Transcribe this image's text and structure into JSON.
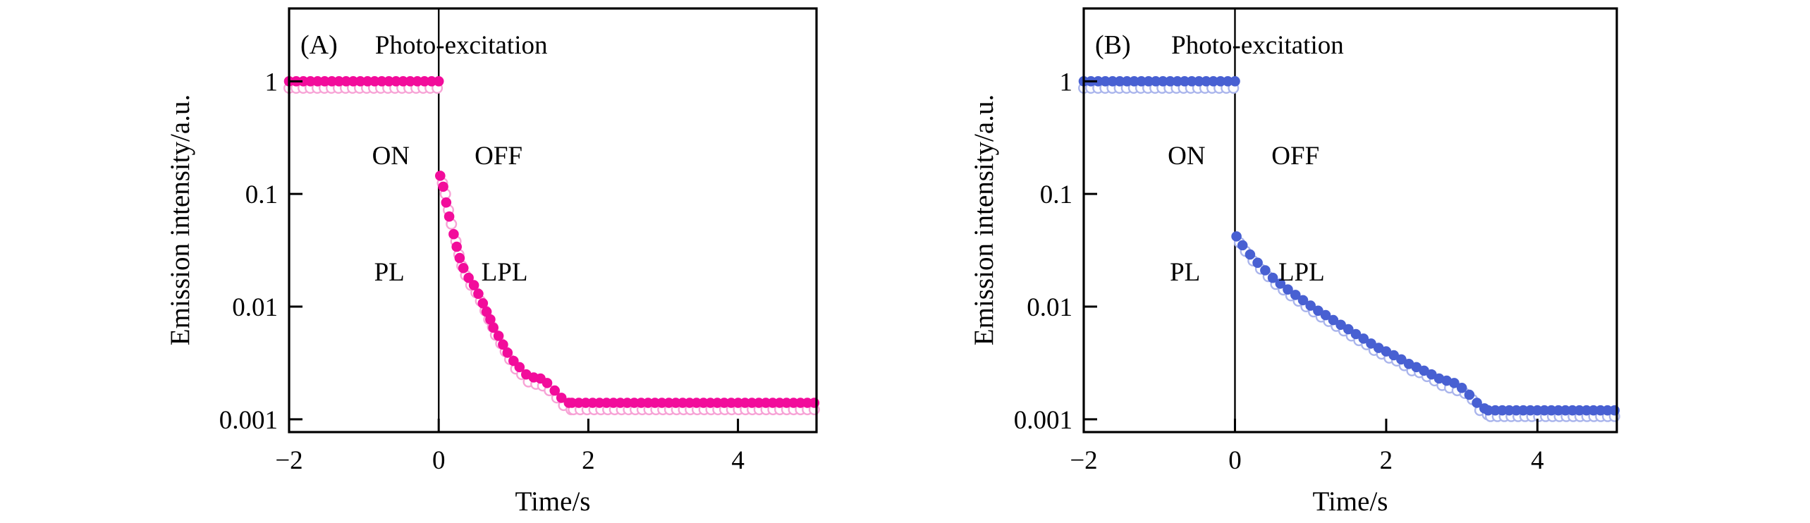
{
  "figure": {
    "background": "#ffffff",
    "border_color": "#000000"
  },
  "chart_data": [
    {
      "type": "scatter",
      "panel_label": "(A)",
      "title": "Photo-excitation",
      "xlabel": "Time/s",
      "ylabel": "Emission intensity/a.u.",
      "xlim": [
        -2,
        5.05
      ],
      "ylim": [
        0.00077,
        4.43
      ],
      "yscale": "log",
      "x_ticks": [
        -2,
        0,
        2,
        4
      ],
      "x_tick_labels": [
        "−2",
        "0",
        "2",
        "4"
      ],
      "y_ticks": [
        1,
        0.1,
        0.01,
        0.001
      ],
      "y_tick_labels": [
        "1",
        "0.1",
        "0.01",
        "0.001"
      ],
      "grid": false,
      "legend": "none",
      "excitation_boundary_x": 0,
      "annotations": {
        "on": "ON",
        "off": "OFF",
        "pl": "PL",
        "lpl": "LPL"
      },
      "series": [
        {
          "name": "open-circle-series",
          "marker": "open",
          "color": "#f7a3d6",
          "segments": [
            {
              "type": "flat",
              "x_start": -2.0,
              "x_end": -0.02,
              "y": 0.87,
              "n": 22
            },
            {
              "type": "points",
              "points": [
                [
                  0.05,
                  0.125
                ],
                [
                  0.09,
                  0.1
                ],
                [
                  0.13,
                  0.072
                ],
                [
                  0.17,
                  0.054
                ],
                [
                  0.23,
                  0.038
                ],
                [
                  0.27,
                  0.029
                ],
                [
                  0.31,
                  0.023
                ],
                [
                  0.36,
                  0.019
                ],
                [
                  0.43,
                  0.0155
                ],
                [
                  0.5,
                  0.0133
                ],
                [
                  0.56,
                  0.0112
                ],
                [
                  0.62,
                  0.0092
                ],
                [
                  0.67,
                  0.0077
                ],
                [
                  0.72,
                  0.0066
                ],
                [
                  0.76,
                  0.0056
                ],
                [
                  0.83,
                  0.0047
                ],
                [
                  0.89,
                  0.004
                ],
                [
                  0.95,
                  0.0034
                ],
                [
                  1.03,
                  0.0028
                ],
                [
                  1.11,
                  0.0025
                ],
                [
                  1.2,
                  0.00215
                ],
                [
                  1.3,
                  0.00205
                ],
                [
                  1.39,
                  0.00198
                ],
                [
                  1.48,
                  0.0018
                ],
                [
                  1.58,
                  0.00155
                ],
                [
                  1.67,
                  0.00133
                ],
                [
                  1.77,
                  0.00122
                ]
              ]
            },
            {
              "type": "flat",
              "x_start": 1.8,
              "x_end": 5.02,
              "y": 0.00122,
              "n": 36
            }
          ]
        },
        {
          "name": "filled-circle-series",
          "marker": "filled",
          "color": "#f20c9b",
          "segments": [
            {
              "type": "flat",
              "x_start": -2.0,
              "x_end": 0.0,
              "y": 1.0,
              "n": 22
            },
            {
              "type": "points",
              "points": [
                [
                  0.02,
                  0.145
                ],
                [
                  0.06,
                  0.116
                ],
                [
                  0.1,
                  0.084
                ],
                [
                  0.14,
                  0.063
                ],
                [
                  0.2,
                  0.044
                ],
                [
                  0.24,
                  0.034
                ],
                [
                  0.28,
                  0.027
                ],
                [
                  0.33,
                  0.022
                ],
                [
                  0.4,
                  0.018
                ],
                [
                  0.47,
                  0.0155
                ],
                [
                  0.53,
                  0.013
                ],
                [
                  0.59,
                  0.0107
                ],
                [
                  0.64,
                  0.009
                ],
                [
                  0.69,
                  0.0077
                ],
                [
                  0.73,
                  0.0065
                ],
                [
                  0.8,
                  0.0055
                ],
                [
                  0.86,
                  0.0046
                ],
                [
                  0.92,
                  0.0039
                ],
                [
                  1.0,
                  0.0033
                ],
                [
                  1.08,
                  0.0029
                ],
                [
                  1.17,
                  0.0025
                ],
                [
                  1.27,
                  0.00235
                ],
                [
                  1.36,
                  0.0023
                ],
                [
                  1.45,
                  0.0021
                ],
                [
                  1.55,
                  0.0018
                ],
                [
                  1.64,
                  0.00155
                ],
                [
                  1.74,
                  0.0014
                ]
              ]
            },
            {
              "type": "flat",
              "x_start": 1.78,
              "x_end": 5.02,
              "y": 0.0014,
              "n": 36
            }
          ]
        }
      ]
    },
    {
      "type": "scatter",
      "panel_label": "(B)",
      "title": "Photo-excitation",
      "xlabel": "Time/s",
      "ylabel": "Emission intensity/a.u.",
      "xlim": [
        -2,
        5.05
      ],
      "ylim": [
        0.00077,
        4.43
      ],
      "yscale": "log",
      "x_ticks": [
        -2,
        0,
        2,
        4
      ],
      "x_tick_labels": [
        "−2",
        "0",
        "2",
        "4"
      ],
      "y_ticks": [
        1,
        0.1,
        0.01,
        0.001
      ],
      "y_tick_labels": [
        "1",
        "0.1",
        "0.01",
        "0.001"
      ],
      "grid": false,
      "legend": "none",
      "excitation_boundary_x": 0,
      "annotations": {
        "on": "ON",
        "off": "OFF",
        "pl": "PL",
        "lpl": "LPL"
      },
      "series": [
        {
          "name": "open-circle-series",
          "marker": "open",
          "color": "#aab5ec",
          "segments": [
            {
              "type": "flat",
              "x_start": -2.0,
              "x_end": -0.02,
              "y": 0.87,
              "n": 22
            },
            {
              "type": "points",
              "points": [
                [
                  0.06,
                  0.037
                ],
                [
                  0.14,
                  0.031
                ],
                [
                  0.24,
                  0.0255
                ],
                [
                  0.34,
                  0.0216
                ],
                [
                  0.44,
                  0.0185
                ],
                [
                  0.54,
                  0.0158
                ],
                [
                  0.64,
                  0.0141
                ],
                [
                  0.74,
                  0.0125
                ],
                [
                  0.84,
                  0.0112
                ],
                [
                  0.94,
                  0.01
                ],
                [
                  1.04,
                  0.009
                ],
                [
                  1.14,
                  0.0081
                ],
                [
                  1.24,
                  0.0074
                ],
                [
                  1.34,
                  0.0067
                ],
                [
                  1.44,
                  0.0061
                ],
                [
                  1.54,
                  0.0055
                ],
                [
                  1.64,
                  0.005
                ],
                [
                  1.74,
                  0.0046
                ],
                [
                  1.84,
                  0.0041
                ],
                [
                  1.94,
                  0.0038
                ],
                [
                  2.04,
                  0.0035
                ],
                [
                  2.14,
                  0.0033
                ],
                [
                  2.24,
                  0.003
                ],
                [
                  2.34,
                  0.0027
                ],
                [
                  2.44,
                  0.0026
                ],
                [
                  2.54,
                  0.0024
                ],
                [
                  2.64,
                  0.0022
                ],
                [
                  2.74,
                  0.002
                ],
                [
                  2.84,
                  0.0019
                ],
                [
                  2.94,
                  0.0018
                ],
                [
                  3.04,
                  0.0017
                ],
                [
                  3.14,
                  0.0015
                ],
                [
                  3.24,
                  0.0012
                ],
                [
                  3.34,
                  0.0011
                ]
              ]
            },
            {
              "type": "flat",
              "x_start": 3.38,
              "x_end": 5.02,
              "y": 0.00106,
              "n": 19
            }
          ]
        },
        {
          "name": "filled-circle-series",
          "marker": "filled",
          "color": "#4860d2",
          "segments": [
            {
              "type": "flat",
              "x_start": -2.0,
              "x_end": 0.0,
              "y": 1.0,
              "n": 22
            },
            {
              "type": "points",
              "points": [
                [
                  0.02,
                  0.042
                ],
                [
                  0.1,
                  0.035
                ],
                [
                  0.2,
                  0.029
                ],
                [
                  0.3,
                  0.0245
                ],
                [
                  0.4,
                  0.021
                ],
                [
                  0.5,
                  0.018
                ],
                [
                  0.6,
                  0.016
                ],
                [
                  0.7,
                  0.0142
                ],
                [
                  0.8,
                  0.0127
                ],
                [
                  0.9,
                  0.0114
                ],
                [
                  1.0,
                  0.0102
                ],
                [
                  1.1,
                  0.0092
                ],
                [
                  1.2,
                  0.0084
                ],
                [
                  1.3,
                  0.0076
                ],
                [
                  1.4,
                  0.0069
                ],
                [
                  1.5,
                  0.0063
                ],
                [
                  1.6,
                  0.0057
                ],
                [
                  1.7,
                  0.0052
                ],
                [
                  1.8,
                  0.0047
                ],
                [
                  1.9,
                  0.0043
                ],
                [
                  2.0,
                  0.004
                ],
                [
                  2.1,
                  0.0037
                ],
                [
                  2.2,
                  0.0034
                ],
                [
                  2.3,
                  0.0031
                ],
                [
                  2.4,
                  0.0029
                ],
                [
                  2.5,
                  0.0027
                ],
                [
                  2.6,
                  0.0025
                ],
                [
                  2.7,
                  0.0023
                ],
                [
                  2.8,
                  0.0022
                ],
                [
                  2.9,
                  0.0021
                ],
                [
                  3.0,
                  0.0019
                ],
                [
                  3.1,
                  0.00165
                ],
                [
                  3.2,
                  0.0014
                ],
                [
                  3.3,
                  0.00125
                ]
              ]
            },
            {
              "type": "flat",
              "x_start": 3.35,
              "x_end": 5.02,
              "y": 0.0012,
              "n": 19
            }
          ]
        }
      ]
    }
  ]
}
